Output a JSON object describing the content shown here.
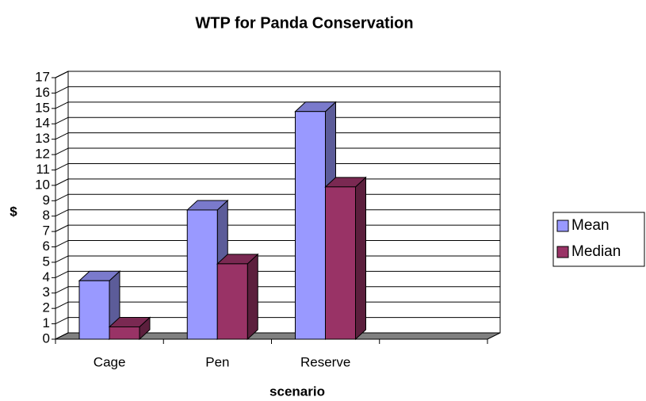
{
  "chart_data": {
    "type": "bar3d",
    "title": "WTP for Panda Conservation",
    "x_label": "scenario",
    "y_label": "$",
    "categories": [
      "Cage",
      "Pen",
      "Reserve",
      null
    ],
    "series": [
      {
        "name": "Mean",
        "color": "#9999ff",
        "values": [
          3.8,
          8.4,
          14.8,
          null
        ]
      },
      {
        "name": "Median",
        "color": "#993366",
        "values": [
          0.8,
          4.9,
          9.9,
          null
        ]
      }
    ],
    "ylim": [
      0,
      17
    ],
    "yticks": [
      0,
      1,
      2,
      3,
      4,
      5,
      6,
      7,
      8,
      9,
      10,
      11,
      12,
      13,
      14,
      15,
      16,
      17
    ],
    "grid": true,
    "legend": "right"
  }
}
